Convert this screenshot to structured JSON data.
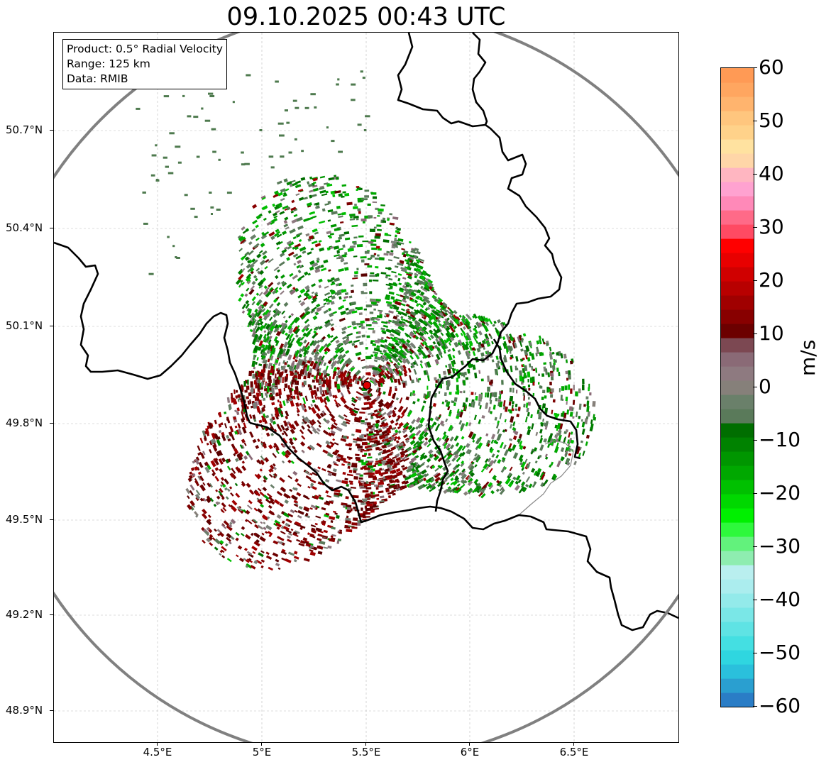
{
  "title": "09.10.2025 00:43 UTC",
  "infobox": {
    "product": "Product: 0.5° Radial Velocity",
    "range": "Range: 125 km",
    "data": "Data: RMIB"
  },
  "axes": {
    "lat_labels": [
      "50.7°N",
      "50.4°N",
      "50.1°N",
      "49.8°N",
      "49.5°N",
      "49.2°N",
      "48.9°N"
    ],
    "lon_labels": [
      "4.5°E",
      "5°E",
      "5.5°E",
      "6°E",
      "6.5°E"
    ]
  },
  "colorbar": {
    "label": "m/s",
    "min": -60,
    "max": 60,
    "ticks": [
      "60",
      "50",
      "40",
      "30",
      "20",
      "10",
      "0",
      "−10",
      "−20",
      "−30",
      "−40",
      "−50",
      "−60"
    ],
    "colors": [
      "#2a7dc6",
      "#2a9fd0",
      "#2ac0dc",
      "#2fd6e0",
      "#44dfe2",
      "#5fe3e4",
      "#7ae7e7",
      "#93eaea",
      "#abedee",
      "#b9efef",
      "#8eedb0",
      "#62f27c",
      "#2ef83c",
      "#00f000",
      "#00d800",
      "#00c000",
      "#00a800",
      "#009600",
      "#008200",
      "#006e00",
      "#5a7a5a",
      "#6a806a",
      "#86807a",
      "#8e7a80",
      "#8a6a76",
      "#7c4852",
      "#6c0000",
      "#880000",
      "#a00000",
      "#b80000",
      "#d00000",
      "#e80000",
      "#ff0000",
      "#ff4a63",
      "#ff6a88",
      "#ff89b8",
      "#ffa2d0",
      "#ffb6c1",
      "#ffd6a8",
      "#ffe2a0",
      "#ffd28a",
      "#ffc67e",
      "#ffb46e",
      "#ffa660",
      "#ff9a55"
    ]
  },
  "colors": {
    "frame": "#000000",
    "range_ring": "#808080",
    "border": "#000000",
    "radar_site": "#dd0000"
  },
  "radar_site": {
    "lat": 49.914,
    "lon": 5.506
  }
}
